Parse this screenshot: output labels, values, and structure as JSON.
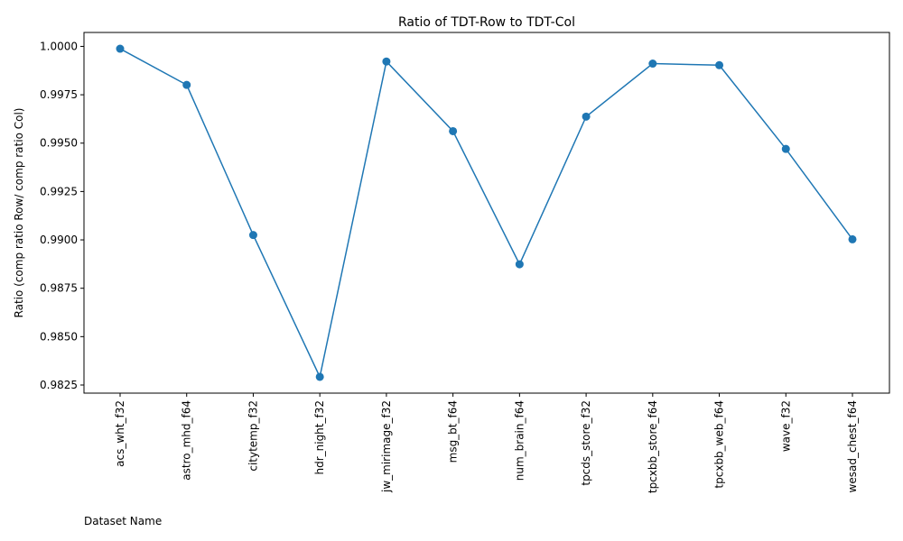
{
  "chart_data": {
    "type": "line",
    "title": "Ratio of TDT-Row to TDT-Col",
    "xlabel": "Dataset Name",
    "ylabel": "Ratio (comp ratio Row/ comp ratio Col)",
    "categories": [
      "acs_wht_f32",
      "astro_mhd_f64",
      "citytemp_f32",
      "hdr_night_f32",
      "jw_mirimage_f32",
      "msg_bt_f64",
      "num_brain_f64",
      "tpcds_store_f32",
      "tpcxbb_store_f64",
      "tpcxbb_web_f64",
      "wave_f32",
      "wesad_chest_f64"
    ],
    "values": [
      0.99988,
      0.99801,
      0.99025,
      0.98292,
      0.99922,
      0.99562,
      0.98874,
      0.99637,
      0.99911,
      0.99903,
      0.9947,
      0.99003
    ],
    "ylim": [
      0.98208,
      1.00072
    ],
    "yticks": [
      "0.9825",
      "0.9850",
      "0.9875",
      "0.9900",
      "0.9925",
      "0.9950",
      "0.9975",
      "1.0000"
    ],
    "grid": false,
    "series_color": "#1f77b4"
  }
}
